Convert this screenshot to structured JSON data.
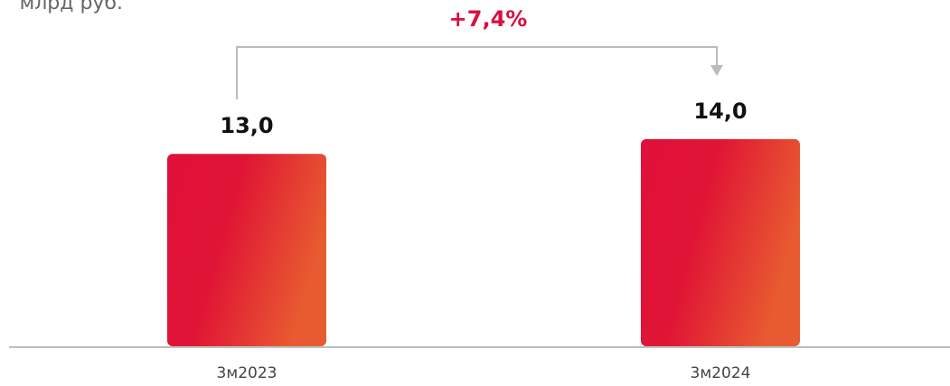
{
  "chart_data": {
    "type": "bar",
    "subtitle": "млрд руб.",
    "annotation": "+7,4%",
    "categories": [
      "3м2023",
      "3м2024"
    ],
    "values": [
      13.0,
      14.0
    ],
    "value_labels": [
      "13,0",
      "14,0"
    ],
    "color": "#e0103a",
    "ylim": [
      0,
      23.4
    ]
  }
}
